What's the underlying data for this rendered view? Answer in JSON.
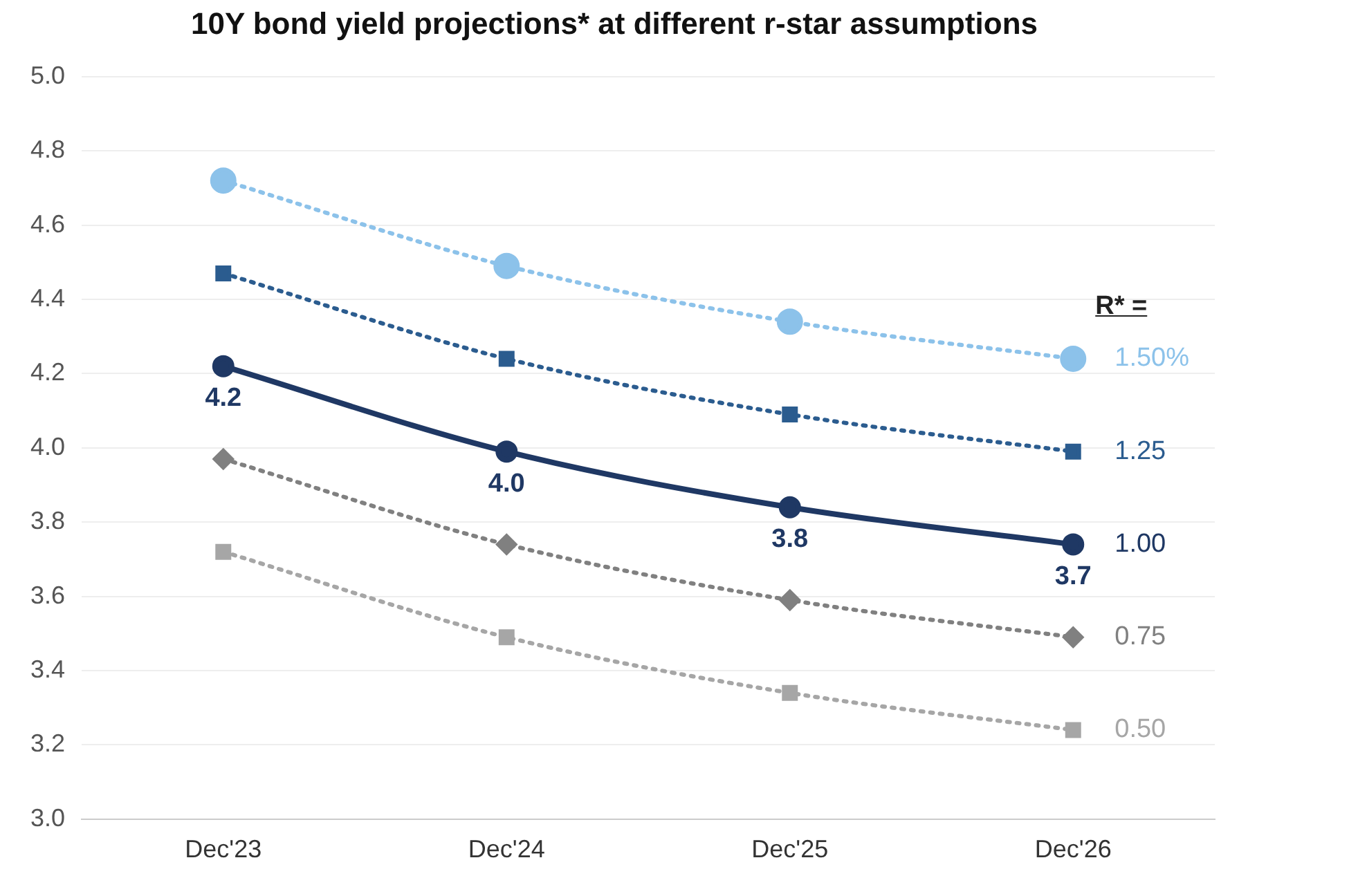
{
  "chart_data": {
    "type": "line",
    "title": "10Y bond yield projections* at different r-star assumptions",
    "legend_title": "R* =",
    "categories": [
      "Dec'23",
      "Dec'24",
      "Dec'25",
      "Dec'26"
    ],
    "series": [
      {
        "name": "1.50%",
        "color": "#8cc2ea",
        "marker": "circle",
        "line_style": "dotted",
        "values": [
          4.72,
          4.49,
          4.34,
          4.24
        ]
      },
      {
        "name": "1.25",
        "color": "#2b5c8f",
        "marker": "square",
        "line_style": "dotted",
        "values": [
          4.47,
          4.24,
          4.09,
          3.99
        ]
      },
      {
        "name": "1.00",
        "color": "#1f3864",
        "marker": "circle",
        "line_style": "solid",
        "values": [
          4.22,
          3.99,
          3.84,
          3.74
        ],
        "value_labels": [
          "4.2",
          "4.0",
          "3.8",
          "3.7"
        ]
      },
      {
        "name": "0.75",
        "color": "#808080",
        "marker": "diamond",
        "line_style": "dotted",
        "values": [
          3.97,
          3.74,
          3.59,
          3.49
        ]
      },
      {
        "name": "0.50",
        "color": "#a6a6a6",
        "marker": "square",
        "line_style": "dotted",
        "values": [
          3.72,
          3.49,
          3.34,
          3.24
        ]
      }
    ],
    "ylim": [
      3.0,
      5.0
    ],
    "yticks": [
      {
        "value": 3,
        "label": "3.0"
      },
      3.2,
      3.4,
      3.6,
      3.8,
      {
        "value": 4,
        "label": "4.0"
      },
      4.2,
      4.4,
      4.6,
      4.8,
      {
        "value": 5,
        "label": "5.0"
      }
    ],
    "grid": "y",
    "legend": "right"
  }
}
